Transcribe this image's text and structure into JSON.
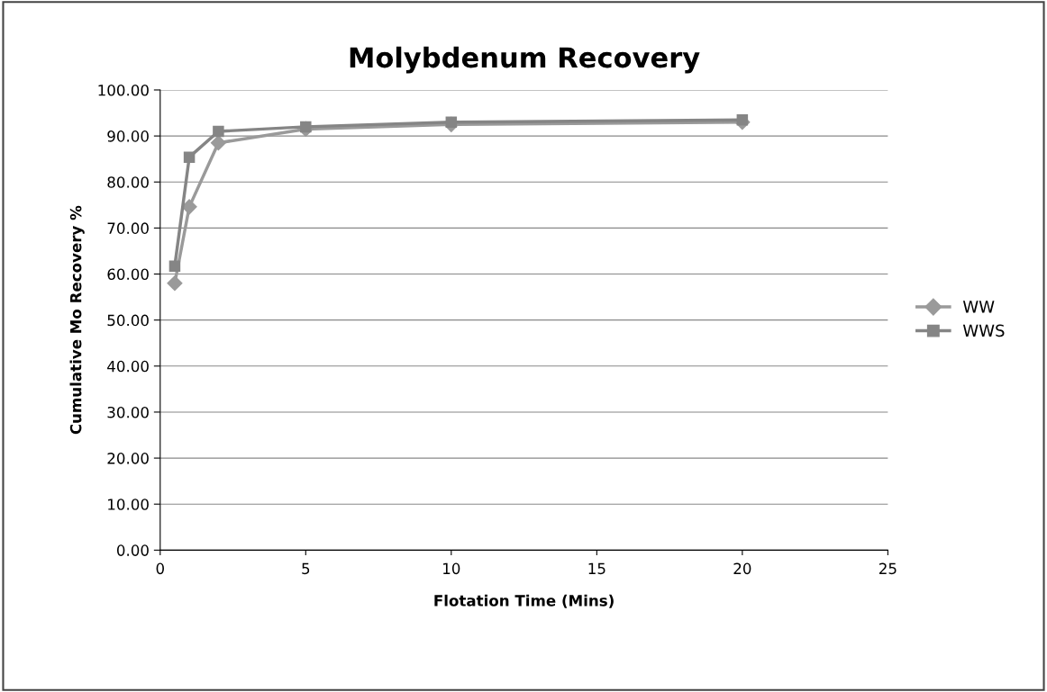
{
  "chart_data": {
    "type": "line",
    "title": "Molybdenum Recovery",
    "xlabel": "Flotation Time (Mins)",
    "ylabel": "Cumulative Mo Recovery %",
    "x": [
      0.5,
      1,
      2,
      5,
      10,
      20
    ],
    "series": [
      {
        "name": "WW",
        "color": "#9a9a9a",
        "marker": "diamond",
        "values": [
          58.0,
          74.6,
          88.5,
          91.5,
          92.5,
          93.0
        ]
      },
      {
        "name": "WWS",
        "color": "#858585",
        "marker": "square",
        "values": [
          61.7,
          85.4,
          91.0,
          92.0,
          93.0,
          93.5
        ]
      }
    ],
    "xlim": [
      0,
      25
    ],
    "xticks": [
      0,
      5,
      10,
      15,
      20,
      25
    ],
    "ylim": [
      0,
      100
    ],
    "yticks": [
      {
        "value": 0,
        "label": "0.00"
      },
      {
        "value": 10,
        "label": "10.00"
      },
      {
        "value": 20,
        "label": "20.00"
      },
      {
        "value": 30,
        "label": "30.00"
      },
      {
        "value": 40,
        "label": "40.00"
      },
      {
        "value": 50,
        "label": "50.00"
      },
      {
        "value": 60,
        "label": "60.00"
      },
      {
        "value": 70,
        "label": "70.00"
      },
      {
        "value": 80,
        "label": "80.00"
      },
      {
        "value": 90,
        "label": "90.00"
      },
      {
        "value": 100,
        "label": "100.00"
      }
    ],
    "grid": "y",
    "legend": "right",
    "line_style": "solid"
  }
}
